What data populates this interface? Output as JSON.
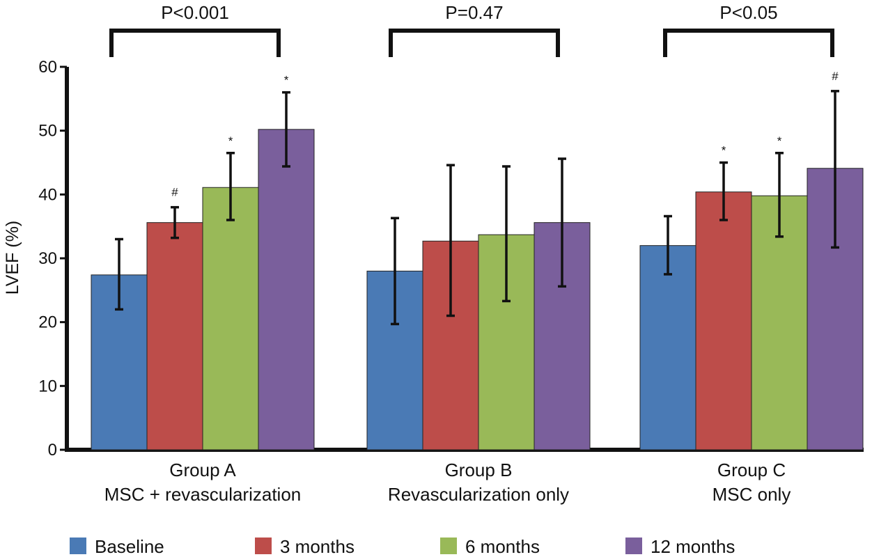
{
  "chart_data": {
    "type": "bar",
    "title": "",
    "xlabel": "",
    "ylabel": "LVEF (%)",
    "ylim": [
      0,
      60
    ],
    "yticks": [
      0,
      10,
      20,
      30,
      40,
      50,
      60
    ],
    "grid": false,
    "legend_position": "bottom",
    "categories": [
      {
        "line1": "Group A",
        "line2": "MSC + revascularization"
      },
      {
        "line1": "Group B",
        "line2": "Revascularization only"
      },
      {
        "line1": "Group C",
        "line2": "MSC only"
      }
    ],
    "series": [
      {
        "name": "Baseline",
        "color": "#4a7ab5",
        "values": [
          27.4,
          28.0,
          32.0
        ],
        "err_low": [
          22.0,
          19.7,
          27.5
        ],
        "err_high": [
          33.0,
          36.3,
          36.6
        ],
        "marks": [
          "",
          "",
          ""
        ]
      },
      {
        "name": "3 months",
        "color": "#bd4d4a",
        "values": [
          35.6,
          32.7,
          40.4
        ],
        "err_low": [
          33.2,
          21.0,
          36.0
        ],
        "err_high": [
          38.0,
          44.6,
          45.0
        ],
        "marks": [
          "#",
          "",
          "*"
        ]
      },
      {
        "name": "6 months",
        "color": "#99b958",
        "values": [
          41.1,
          33.7,
          39.8
        ],
        "err_low": [
          36.0,
          23.3,
          33.4
        ],
        "err_high": [
          46.5,
          44.4,
          46.5
        ],
        "marks": [
          "*",
          "",
          "*"
        ]
      },
      {
        "name": "12 months",
        "color": "#7a5f9c",
        "values": [
          50.2,
          35.6,
          44.1
        ],
        "err_low": [
          44.4,
          25.6,
          31.7
        ],
        "err_high": [
          56.0,
          45.6,
          56.2
        ],
        "marks": [
          "*",
          "",
          "#"
        ]
      }
    ],
    "annotations": [
      "P<0.001",
      "P=0.47",
      "P<0.05"
    ]
  }
}
